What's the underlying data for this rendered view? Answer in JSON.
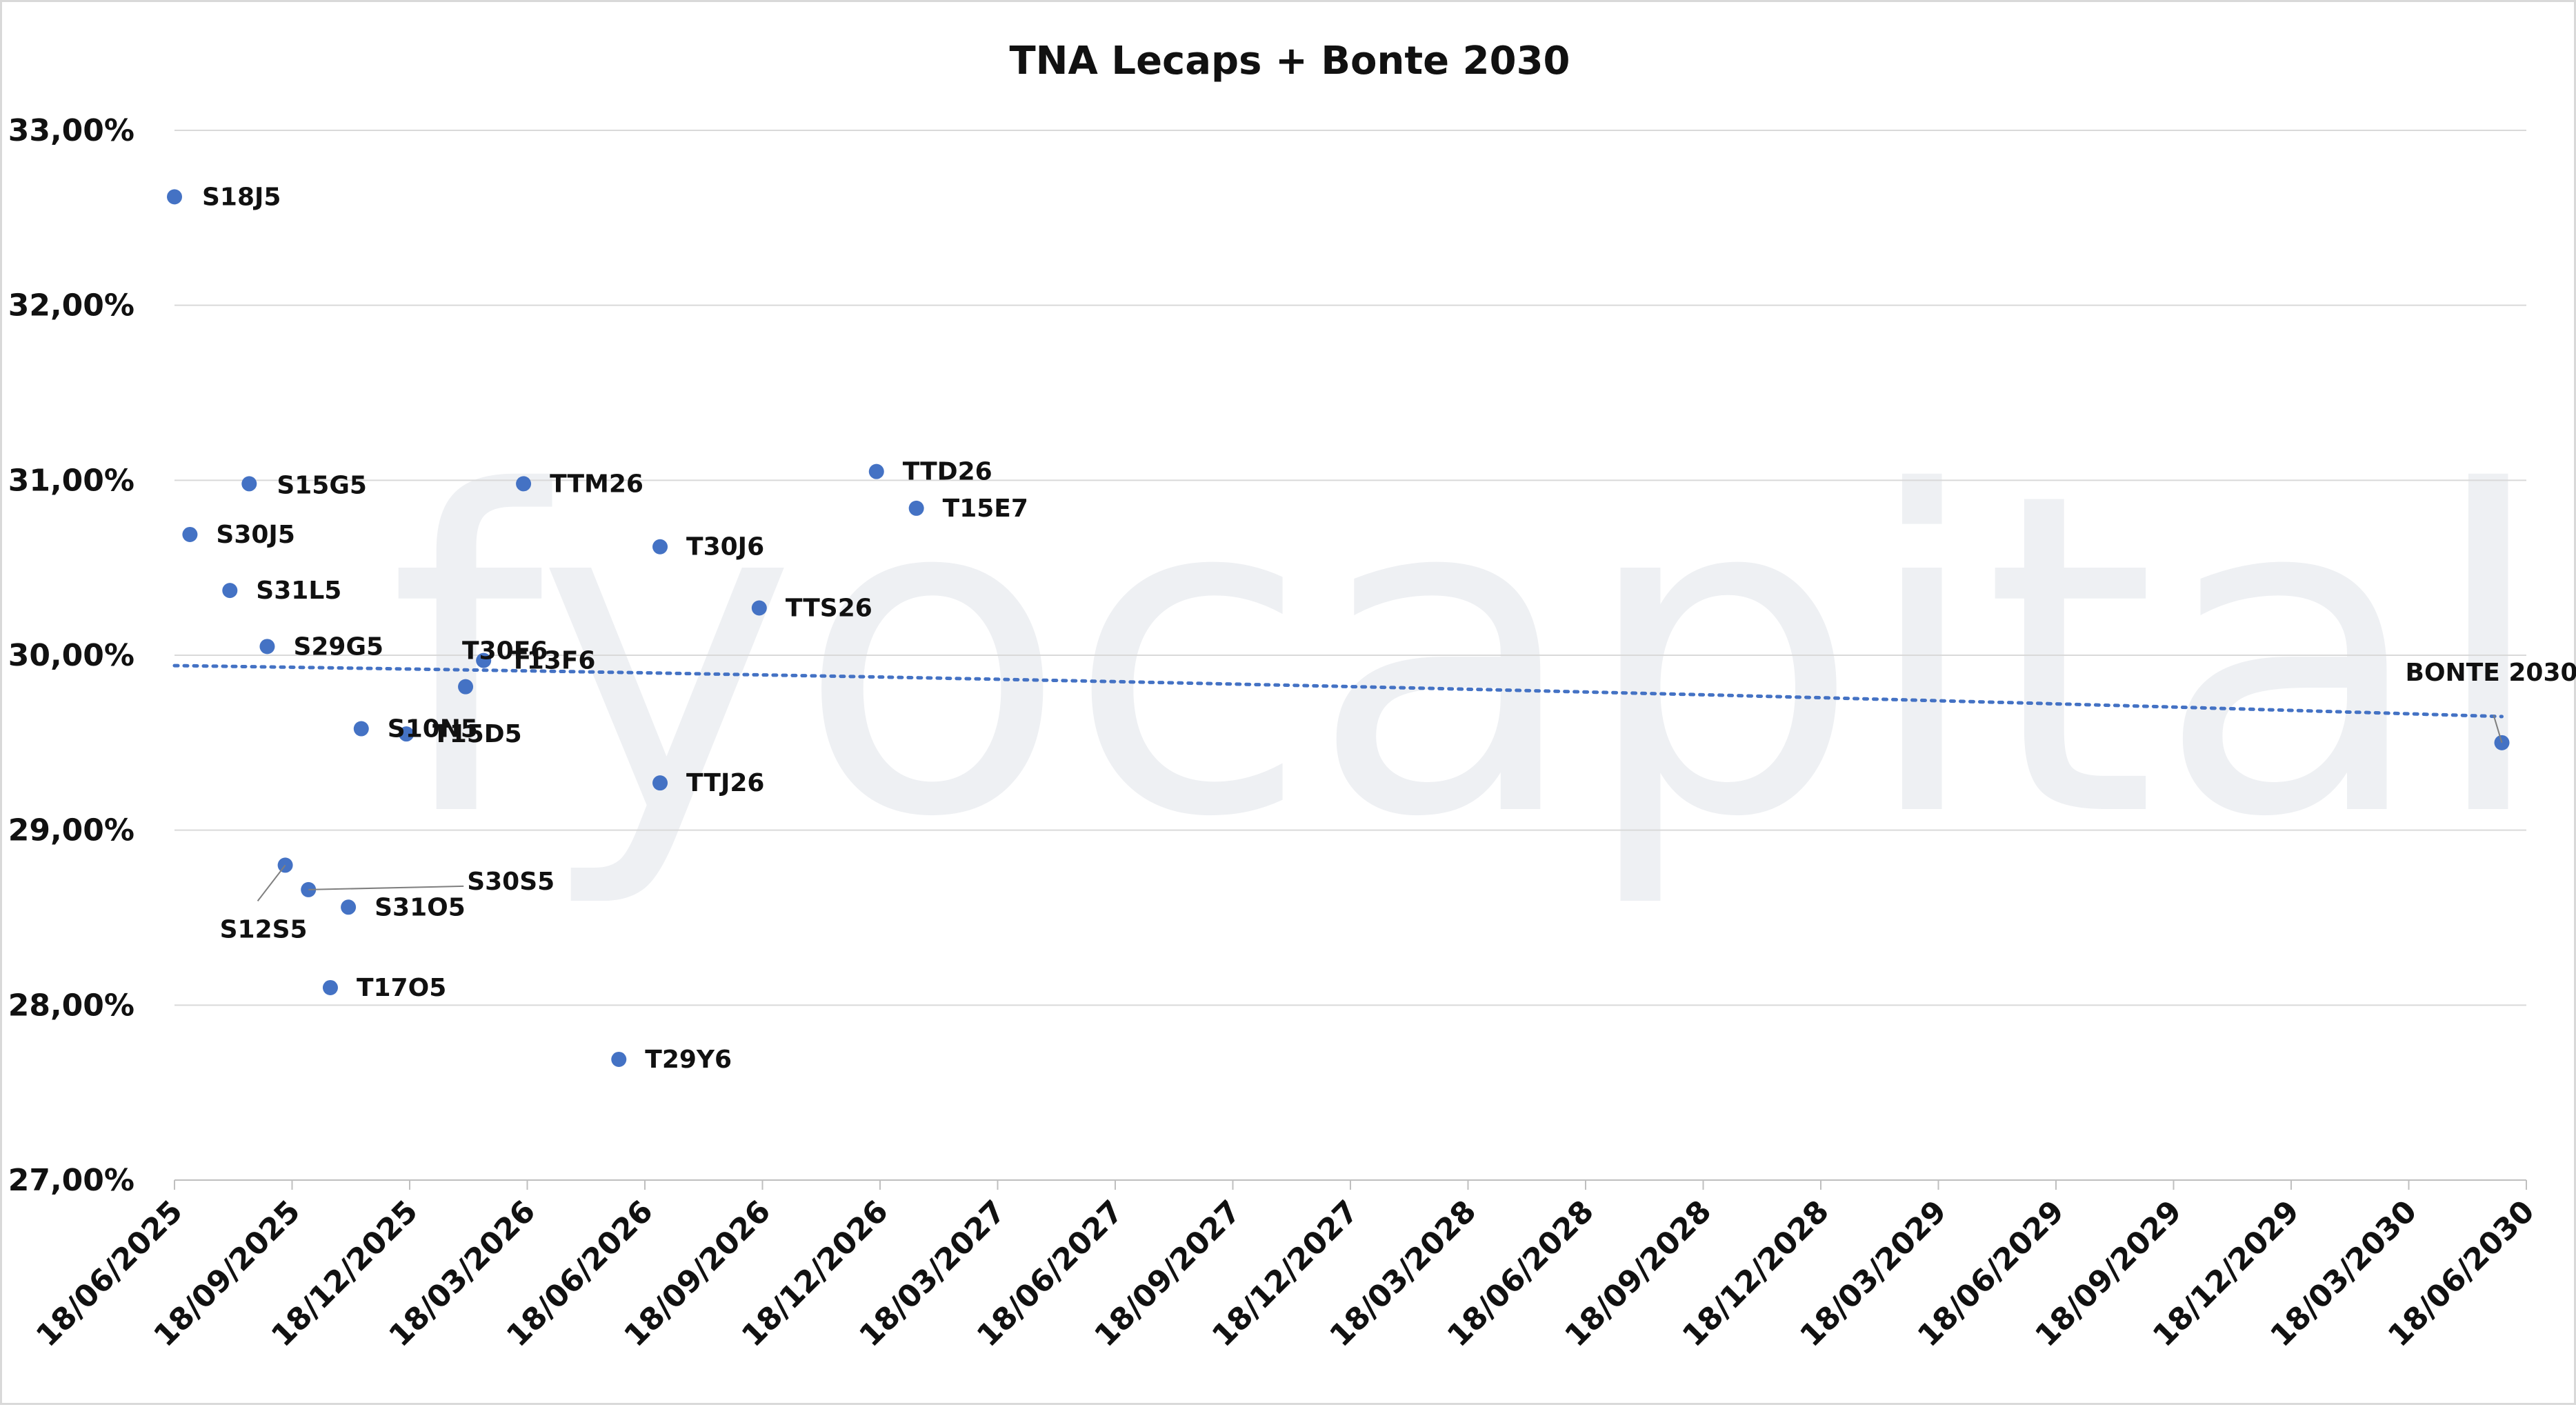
{
  "chart_data": {
    "type": "scatter",
    "title": "TNA Lecaps + Bonte 2030",
    "watermark": "fyocapital",
    "xlabel": "",
    "ylabel": "",
    "xlim": [
      "2025-06-18",
      "2030-06-18"
    ],
    "ylim": [
      27.0,
      33.0
    ],
    "y_ticks": [
      "27,00%",
      "28,00%",
      "29,00%",
      "30,00%",
      "31,00%",
      "32,00%",
      "33,00%"
    ],
    "x_ticks": [
      "18/06/2025",
      "18/09/2025",
      "18/12/2025",
      "18/03/2026",
      "18/06/2026",
      "18/09/2026",
      "18/12/2026",
      "18/03/2027",
      "18/06/2027",
      "18/09/2027",
      "18/12/2027",
      "18/03/2028",
      "18/06/2028",
      "18/09/2028",
      "18/12/2028",
      "18/03/2029",
      "18/06/2029",
      "18/09/2029",
      "18/12/2029",
      "18/03/2030",
      "18/06/2030"
    ],
    "grid": "horizontal",
    "marker_color": "#4472c4",
    "trendline": {
      "type": "polynomial",
      "style": "dotted",
      "color": "#4472c4"
    },
    "points": [
      {
        "label": "S18J5",
        "x": "2025-06-18",
        "y": 32.62
      },
      {
        "label": "S30J5",
        "x": "2025-06-30",
        "y": 30.69
      },
      {
        "label": "S31L5",
        "x": "2025-07-31",
        "y": 30.37
      },
      {
        "label": "S15G5",
        "x": "2025-08-15",
        "y": 30.98
      },
      {
        "label": "S29G5",
        "x": "2025-08-29",
        "y": 30.05
      },
      {
        "label": "S12S5",
        "x": "2025-09-12",
        "y": 28.8
      },
      {
        "label": "S30S5",
        "x": "2025-09-30",
        "y": 28.66
      },
      {
        "label": "T17O5",
        "x": "2025-10-17",
        "y": 28.1
      },
      {
        "label": "S31O5",
        "x": "2025-10-31",
        "y": 28.56
      },
      {
        "label": "S10N5",
        "x": "2025-11-10",
        "y": 29.58
      },
      {
        "label": "T15D5",
        "x": "2025-12-15",
        "y": 29.55
      },
      {
        "label": "T30E6",
        "x": "2026-01-30",
        "y": 29.82
      },
      {
        "label": "T13F6",
        "x": "2026-02-13",
        "y": 29.97
      },
      {
        "label": "T29Y6",
        "x": "2026-05-29",
        "y": 27.69
      },
      {
        "label": "TTM26",
        "x": "2026-03-16",
        "y": 30.98
      },
      {
        "label": "T30J6",
        "x": "2026-06-30",
        "y": 30.62
      },
      {
        "label": "TTJ26",
        "x": "2026-06-30",
        "y": 29.27
      },
      {
        "label": "TTS26",
        "x": "2026-09-15",
        "y": 30.27
      },
      {
        "label": "TTD26",
        "x": "2026-12-15",
        "y": 31.05
      },
      {
        "label": "T15E7",
        "x": "2027-01-15",
        "y": 30.84
      },
      {
        "label": "BONTE 2030",
        "x": "2030-05-30",
        "y": 29.5
      }
    ]
  }
}
